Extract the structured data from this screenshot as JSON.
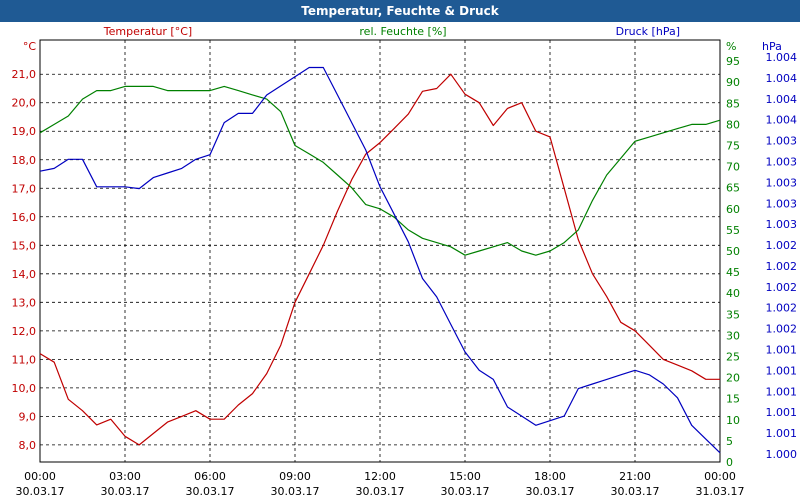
{
  "window": {
    "title": "Temperatur, Feuchte & Druck"
  },
  "chart_data": {
    "type": "line",
    "title": "Temperatur, Feuchte & Druck",
    "x_ticks": [
      {
        "time": "00:00",
        "date": "30.03.17"
      },
      {
        "time": "03:00",
        "date": "30.03.17"
      },
      {
        "time": "06:00",
        "date": "30.03.17"
      },
      {
        "time": "09:00",
        "date": "30.03.17"
      },
      {
        "time": "12:00",
        "date": "30.03.17"
      },
      {
        "time": "15:00",
        "date": "30.03.17"
      },
      {
        "time": "18:00",
        "date": "30.03.17"
      },
      {
        "time": "21:00",
        "date": "30.03.17"
      },
      {
        "time": "00:00",
        "date": "31.03.17"
      }
    ],
    "x_range_hours": [
      0,
      24
    ],
    "axes": {
      "temperature": {
        "label": "Temperatur [°C]",
        "unit": "°C",
        "color": "#c00000",
        "range": [
          7.4,
          22.2
        ],
        "ticks": [
          "8,0",
          "9,0",
          "10,0",
          "11,0",
          "12,0",
          "13,0",
          "14,0",
          "15,0",
          "16,0",
          "17,0",
          "18,0",
          "19,0",
          "20,0",
          "21,0"
        ]
      },
      "humidity": {
        "label": "rel. Feuchte [%]",
        "unit": "%",
        "color": "#008000",
        "range": [
          0,
          100
        ],
        "ticks": [
          "0",
          "5",
          "10",
          "15",
          "20",
          "25",
          "30",
          "35",
          "40",
          "45",
          "50",
          "55",
          "60",
          "65",
          "70",
          "75",
          "80",
          "85",
          "90",
          "95"
        ]
      },
      "pressure": {
        "label": "Druck [hPa]",
        "unit": "hPa",
        "color": "#0000c0",
        "ticks": [
          "1.000",
          "1.001",
          "1.001",
          "1.001",
          "1.001",
          "1.001",
          "1.002",
          "1.002",
          "1.002",
          "1.002",
          "1.002",
          "1.003",
          "1.003",
          "1.003",
          "1.003",
          "1.003",
          "1.004",
          "1.004",
          "1.004",
          "1.004"
        ]
      }
    },
    "series": [
      {
        "name": "Temperatur",
        "axis": "temperature",
        "color": "#c00000",
        "x": [
          0,
          0.5,
          1,
          1.5,
          2,
          2.5,
          3,
          3.5,
          4,
          4.5,
          5,
          5.5,
          6,
          6.5,
          7,
          7.5,
          8,
          8.5,
          9,
          9.5,
          10,
          10.5,
          11,
          11.5,
          12,
          12.5,
          13,
          13.5,
          14,
          14.5,
          15,
          15.5,
          16,
          16.5,
          17,
          17.5,
          18,
          18.5,
          19,
          19.5,
          20,
          20.5,
          21,
          21.5,
          22,
          22.5,
          23,
          23.5,
          24
        ],
        "values": [
          11.2,
          10.9,
          9.6,
          9.2,
          8.7,
          8.9,
          8.3,
          8.0,
          8.4,
          8.8,
          9.0,
          9.2,
          8.9,
          8.9,
          9.4,
          9.8,
          10.5,
          11.5,
          13.0,
          14.0,
          15.0,
          16.2,
          17.3,
          18.2,
          18.6,
          19.1,
          19.6,
          20.4,
          20.5,
          21.0,
          20.3,
          20.0,
          19.2,
          19.8,
          20.0,
          19.0,
          18.8,
          17.0,
          15.2,
          14.0,
          13.2,
          12.3,
          12.0,
          11.5,
          11.0,
          10.8,
          10.6,
          10.3,
          10.3
        ]
      },
      {
        "name": "rel. Feuchte",
        "axis": "humidity",
        "color": "#008000",
        "x": [
          0,
          0.5,
          1,
          1.5,
          2,
          2.5,
          3,
          3.5,
          4,
          4.5,
          5,
          5.5,
          6,
          6.5,
          7,
          7.5,
          8,
          8.5,
          9,
          9.5,
          10,
          10.5,
          11,
          11.5,
          12,
          12.5,
          13,
          13.5,
          14,
          14.5,
          15,
          15.5,
          16,
          16.5,
          17,
          17.5,
          18,
          18.5,
          19,
          19.5,
          20,
          20.5,
          21,
          21.5,
          22,
          22.5,
          23,
          23.5,
          24
        ],
        "values": [
          78,
          80,
          82,
          86,
          88,
          88,
          89,
          89,
          89,
          88,
          88,
          88,
          88,
          89,
          88,
          87,
          86,
          83,
          75,
          73,
          71,
          68,
          65,
          61,
          60,
          58,
          55,
          53,
          52,
          51,
          49,
          50,
          51,
          52,
          50,
          49,
          50,
          52,
          55,
          62,
          68,
          72,
          76,
          77,
          78,
          79,
          80,
          80,
          81
        ]
      },
      {
        "name": "Druck",
        "axis": "pressure",
        "color": "#0000c0",
        "x": [
          0,
          0.5,
          1,
          1.5,
          2,
          2.5,
          3,
          3.5,
          4,
          4.5,
          5,
          5.5,
          6,
          6.5,
          7,
          7.5,
          8,
          8.5,
          9,
          9.5,
          10,
          10.5,
          11,
          11.5,
          12,
          12.5,
          13,
          13.5,
          14,
          14.5,
          15,
          15.5,
          16,
          16.5,
          17,
          17.5,
          18,
          18.5,
          19,
          19.5,
          20,
          20.5,
          21,
          21.5,
          22,
          22.5,
          23,
          23.5,
          24
        ],
        "values": [
          1.00317,
          1.0032,
          1.0033,
          1.0033,
          1.003,
          1.003,
          1.003,
          1.00298,
          1.0031,
          1.00315,
          1.0032,
          1.0033,
          1.00335,
          1.0037,
          1.0038,
          1.0038,
          1.004,
          1.0041,
          1.0042,
          1.0043,
          1.0043,
          1.004,
          1.0037,
          1.0034,
          1.003,
          1.0027,
          1.0024,
          1.002,
          1.0018,
          1.0015,
          1.0012,
          1.001,
          1.0009,
          1.0006,
          1.0005,
          1.0004,
          1.00045,
          1.0005,
          1.0008,
          1.00085,
          1.0009,
          1.00095,
          1.001,
          1.00095,
          1.00085,
          1.0007,
          1.0004,
          1.00025,
          1.0001
        ]
      }
    ],
    "pressure_range_raw": [
      1.0,
      1.0046
    ],
    "grid": true
  }
}
